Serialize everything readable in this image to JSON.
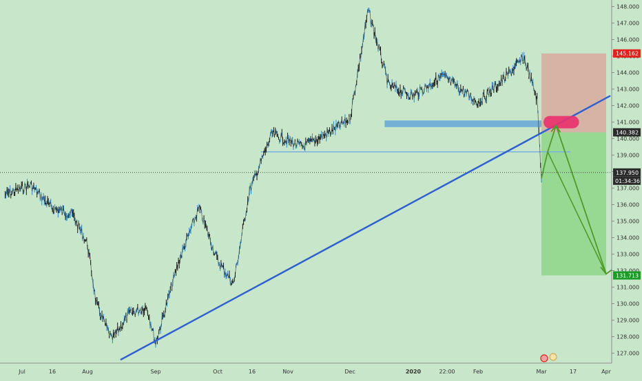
{
  "theme": {
    "background": "#c8e6c9",
    "candle_color": "#1a1a1a",
    "wick_highlight": "#2f86c9",
    "trendline_color": "#2f5fd0",
    "support_zone_color": "#6aa9d6",
    "stop_zone_color": "#d9a9a0",
    "target_zone_color": "#8ed68a",
    "entry_marker_color": "#e8336e",
    "arrow_color": "#4f9a2a",
    "stop_badge_color": "#e2211c",
    "target_badge_color": "#1a9c27",
    "neutral_badge_color": "#2b2b2b"
  },
  "chart_data": {
    "type": "line",
    "title": "",
    "xlabel": "",
    "ylabel": "",
    "ylim": [
      126.4,
      148.4
    ],
    "grid": false,
    "x_tick_labels": [
      "Jul",
      "16",
      "Aug",
      "Sep",
      "Oct",
      "16",
      "Nov",
      "Dec",
      "2020",
      "22:00",
      "Feb",
      "Mar",
      "17",
      "Apr"
    ],
    "y_tick_values": [
      127,
      128,
      129,
      130,
      131,
      132,
      133,
      134,
      135,
      136,
      137,
      138,
      139,
      140,
      141,
      142,
      143,
      144,
      145,
      146,
      147,
      148
    ],
    "y_tick_labels": [
      "127.000",
      "128.000",
      "129.000",
      "130.000",
      "131.000",
      "132.000",
      "133.000",
      "134.000",
      "135.000",
      "136.000",
      "137.000",
      "138.000",
      "139.000",
      "140.000",
      "141.000",
      "142.000",
      "143.000",
      "144.000",
      "145.000",
      "146.000",
      "147.000",
      "148.000"
    ],
    "series": [
      {
        "x": [
          "Jun 20",
          "Jul 5",
          "Jul 15",
          "Jul 25",
          "Aug 1",
          "Aug 5",
          "Aug 12",
          "Aug 20",
          "Aug 28",
          "Sep 1",
          "Sep 12",
          "Sep 22",
          "Oct 1",
          "Oct 8",
          "Oct 15",
          "Oct 25",
          "Nov 8",
          "Nov 20",
          "Dec 1",
          "Dec 10",
          "Dec 20",
          "Jan 1",
          "Jan 15",
          "Feb 1",
          "Feb 12",
          "Feb 22",
          "Feb 28",
          "Mar 1"
        ],
        "values": [
          136.6,
          137.2,
          135.8,
          135.4,
          133.6,
          130.0,
          127.8,
          129.4,
          129.8,
          127.6,
          132.5,
          135.8,
          132.6,
          131.2,
          136.8,
          140.3,
          139.5,
          140.3,
          141.2,
          147.8,
          143.2,
          142.6,
          143.8,
          142.2,
          143.5,
          144.9,
          142.4,
          137.6
        ]
      }
    ],
    "horizontal_levels": [
      {
        "label": "145.162",
        "value": 145.162
      },
      {
        "label": "140.382",
        "value": 140.382
      },
      {
        "label": "137.950",
        "value": 137.95
      },
      {
        "label": "131.713",
        "value": 131.713
      }
    ],
    "countdown_label": "01:34:36",
    "annotations": {
      "trendline": {
        "from": [
          "Aug 16",
          126.6
        ],
        "to": [
          "Apr 3",
          142.6
        ]
      },
      "support_zone": {
        "x": [
          "Dec 18",
          "Mar 1"
        ],
        "y": [
          140.7,
          141.1
        ]
      },
      "resistance_line": {
        "x": [
          "Oct 20",
          "Mar 15"
        ],
        "y": 139.2
      },
      "stop_zone": {
        "x": [
          "Mar 1",
          "Apr 1"
        ],
        "y": [
          140.382,
          145.162
        ]
      },
      "target_zone": {
        "x": [
          "Mar 1",
          "Apr 1"
        ],
        "y": [
          131.713,
          140.382
        ]
      },
      "entry_marker": {
        "x": [
          "Mar 2",
          "Mar 19"
        ],
        "y": 141.0
      },
      "projected_path": [
        [
          "Mar 1",
          137.6
        ],
        [
          "Mar 4",
          139.2
        ],
        [
          "Mar 8",
          140.8
        ],
        [
          "Apr 1",
          131.8
        ]
      ]
    }
  }
}
